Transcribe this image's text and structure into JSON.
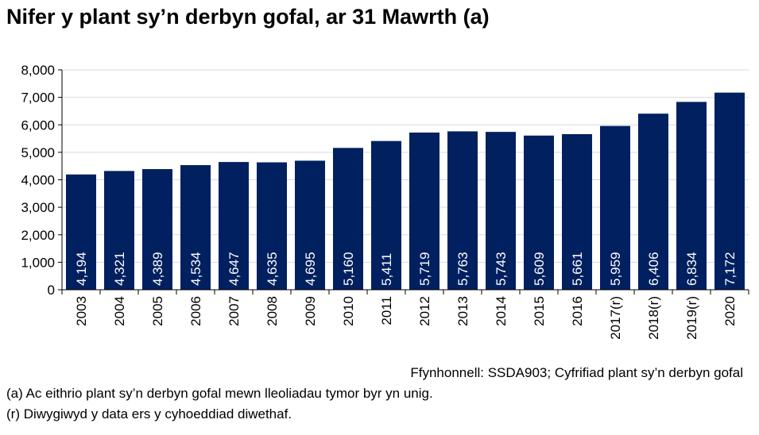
{
  "chart_data": {
    "type": "bar",
    "title": "Nifer y plant sy’n derbyn gofal, ar 31 Mawrth (a)",
    "categories": [
      "2003",
      "2004",
      "2005",
      "2006",
      "2007",
      "2008",
      "2009",
      "2010",
      "2011",
      "2012",
      "2013",
      "2014",
      "2015",
      "2016",
      "2017(r)",
      "2018(r)",
      "2019(r)",
      "2020"
    ],
    "values": [
      4194,
      4321,
      4389,
      4534,
      4647,
      4635,
      4695,
      5160,
      5411,
      5719,
      5763,
      5743,
      5609,
      5661,
      5959,
      6406,
      6834,
      7172
    ],
    "data_labels": [
      "4,194",
      "4,321",
      "4,389",
      "4,534",
      "4,647",
      "4,635",
      "4,695",
      "5,160",
      "5,411",
      "5,719",
      "5,763",
      "5,743",
      "5,609",
      "5,661",
      "5,959",
      "6,406",
      "6,834",
      "7,172"
    ],
    "ylim": [
      0,
      8000
    ],
    "yticks": [
      0,
      1000,
      2000,
      3000,
      4000,
      5000,
      6000,
      7000,
      8000
    ],
    "ytick_labels": [
      "0",
      "1,000",
      "2,000",
      "3,000",
      "4,000",
      "5,000",
      "6,000",
      "7,000",
      "8,000"
    ],
    "grid": true,
    "bar_color": "#002060",
    "xlabel": "",
    "ylabel": ""
  },
  "source": "Ffynhonnell: SSDA903; Cyfrifiad plant sy’n derbyn gofal",
  "notes": [
    "(a) Ac eithrio plant sy’n derbyn gofal mewn lleoliadau tymor byr yn unig.",
    "(r) Diwygiwyd y data ers y cyhoeddiad diwethaf."
  ]
}
